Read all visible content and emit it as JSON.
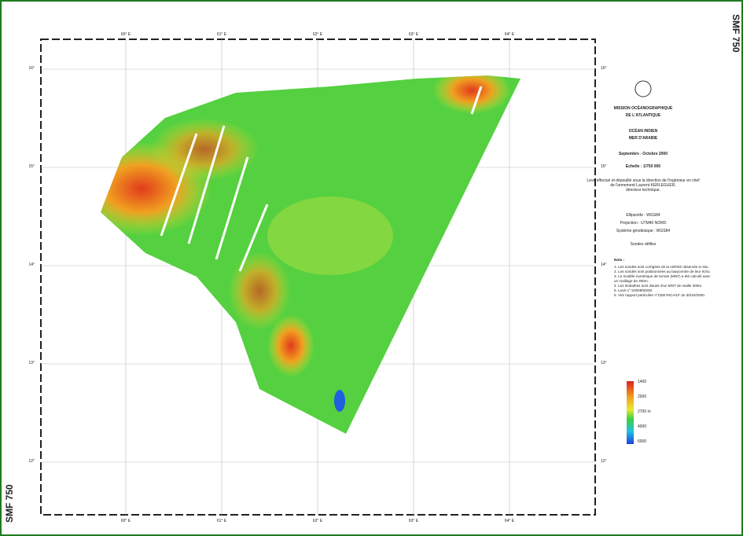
{
  "sheet_id": "SMF 750",
  "title": [
    "MISSION OCÉANOGRAPHIQUE",
    "DE L'ATLANTIQUE"
  ],
  "region": [
    "OCÉAN INDIEN",
    "MER D'ARABIE"
  ],
  "date": "Septembre - Octobre 2000",
  "scale": "Echelle : 1/750 000",
  "credit": [
    "Levé effectué et dépouillé sous la direction de l'ingénieur en chef",
    "de l'armement Laurent KERLEGUER,",
    "directeur technique."
  ],
  "geodesy": [
    "Ellipsoïde : WGS84",
    "Projection : UTM40 NORD",
    "Système géodésique : WGS84"
  ],
  "soundings": "Sondes défiles",
  "notes_title": "Nota :",
  "notes": [
    "1. Les sondes sont corrigées de la célérité observée in situ.",
    "2. Les sondes sont positionnées au barycentre de leur écho.",
    "3. Le modèle numérique de terrain (MNT) a été calculé avec",
    "   un maillage de 300m.",
    "4. Les isobathes sont issues d'un MNT de maille 300m.",
    "5. Levé n° S200900200.",
    "6. Voir rapport particulier n°CEB RICA/LF du 30/10/2000."
  ],
  "legend": [
    "1400",
    "2000",
    "2700 m",
    "4000",
    "6000"
  ],
  "lon_labels": [
    "60° E",
    "61° E",
    "62° E",
    "63° E",
    "64° E"
  ],
  "lat_labels": [
    "16°",
    "15°",
    "14°",
    "13°",
    "12°"
  ]
}
